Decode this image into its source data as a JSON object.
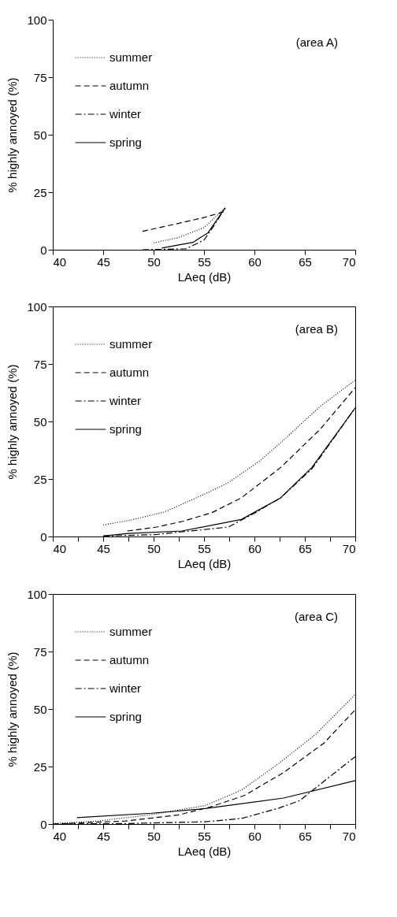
{
  "chart_data": [
    {
      "type": "line",
      "xlabel": "LAeq (dB)",
      "ylabel": "% highly annoyed (%)",
      "annotations": [
        "(area A)"
      ],
      "xlim": [
        40,
        70
      ],
      "ylim": [
        0,
        100
      ],
      "xticks": [
        40,
        45,
        50,
        55,
        60,
        65,
        70
      ],
      "yticks": [
        0,
        25,
        50,
        75,
        100
      ],
      "legend": "top left",
      "series": [
        {
          "name": "summer",
          "color": "#000000",
          "line_style": "dotted",
          "x": [
            50.0,
            52.4,
            55.0,
            57.1
          ],
          "values": [
            3.0,
            5.2,
            9.6,
            18.2
          ]
        },
        {
          "name": "autumn",
          "color": "#000000",
          "line_style": "dashed",
          "x": [
            48.9,
            52.0,
            55.0,
            56.9
          ],
          "values": [
            8.0,
            11.0,
            14.0,
            16.4
          ]
        },
        {
          "name": "winter",
          "color": "#000000",
          "line_style": "dashdot",
          "x": [
            48.9,
            53.2,
            55.0,
            56.1,
            57.1
          ],
          "values": [
            0.0,
            0.4,
            4.2,
            11.2,
            18.2
          ]
        },
        {
          "name": "spring",
          "color": "#000000",
          "line_style": "solid",
          "x": [
            50.8,
            52.4,
            53.9,
            55.4,
            57.1
          ],
          "values": [
            0.7,
            2.0,
            3.2,
            7.4,
            18.2
          ]
        }
      ]
    },
    {
      "type": "line",
      "xlabel": "LAeq (dB)",
      "ylabel": "% highly annoyed (%)",
      "annotations": [
        "(area B)"
      ],
      "xlim": [
        40,
        70
      ],
      "ylim": [
        0,
        100
      ],
      "xticks": [
        40,
        {
          "value": 42.5,
          "label": null
        },
        45,
        {
          "value": 47.5,
          "label": null
        },
        50,
        {
          "value": 52.5,
          "label": null
        },
        55,
        {
          "value": 57.5,
          "label": null
        },
        60,
        {
          "value": 62.5,
          "label": null
        },
        65,
        {
          "value": 67.5,
          "label": null
        },
        70
      ],
      "yticks": [
        0,
        25,
        50,
        75,
        100
      ],
      "legend": "top left",
      "series": [
        {
          "name": "summer",
          "color": "#000000",
          "line_style": "dotted",
          "x": [
            45.0,
            47.7,
            51.1,
            54.8,
            57.4,
            60.5,
            63.1,
            66.5,
            70.0
          ],
          "values": [
            5.0,
            7.1,
            10.7,
            17.9,
            23.4,
            32.7,
            42.7,
            56.5,
            68.0
          ]
        },
        {
          "name": "autumn",
          "color": "#000000",
          "line_style": "dashed",
          "x": [
            47.4,
            50.3,
            52.9,
            55.8,
            58.7,
            62.6,
            66.5,
            70.0
          ],
          "values": [
            2.4,
            4.1,
            6.6,
            10.4,
            16.8,
            30.0,
            46.5,
            64.7
          ]
        },
        {
          "name": "winter",
          "color": "#000000",
          "line_style": "dashdot",
          "x": [
            45.0,
            50.1,
            57.4,
            60.0,
            62.6,
            65.7,
            70.0
          ],
          "values": [
            0.2,
            0.8,
            4.1,
            10.1,
            16.8,
            29.4,
            55.9
          ]
        },
        {
          "name": "spring",
          "color": "#000000",
          "line_style": "solid",
          "x": [
            45.0,
            47.5,
            52.8,
            58.7,
            62.6,
            65.7,
            70.0
          ],
          "values": [
            0.2,
            1.3,
            2.4,
            7.4,
            16.8,
            30.0,
            55.9
          ]
        }
      ]
    },
    {
      "type": "line",
      "xlabel": "LAeq (dB)",
      "ylabel": "% highly annoyed (%)",
      "annotations": [
        "(area C)"
      ],
      "xlim": [
        40,
        70
      ],
      "ylim": [
        0,
        100
      ],
      "xticks": [
        40,
        {
          "value": 42.5,
          "label": null
        },
        45,
        {
          "value": 47.5,
          "label": null
        },
        50,
        {
          "value": 52.5,
          "label": null
        },
        55,
        {
          "value": 57.5,
          "label": null
        },
        60,
        {
          "value": 62.5,
          "label": null
        },
        65,
        {
          "value": 67.5,
          "label": null
        },
        70
      ],
      "yticks": [
        0,
        25,
        50,
        75,
        100
      ],
      "legend": "top left",
      "series": [
        {
          "name": "summer",
          "color": "#000000",
          "line_style": "dotted",
          "x": [
            40.0,
            44.5,
            49.8,
            55.1,
            58.7,
            62.4,
            66.1,
            70.0
          ],
          "values": [
            0.2,
            1.3,
            4.1,
            8.0,
            14.7,
            26.3,
            39.1,
            56.3
          ]
        },
        {
          "name": "autumn",
          "color": "#000000",
          "line_style": "dashed",
          "x": [
            40.0,
            47.2,
            52.4,
            55.6,
            59.0,
            62.9,
            66.9,
            70.0
          ],
          "values": [
            0.0,
            1.3,
            3.9,
            7.4,
            12.4,
            22.4,
            35.2,
            49.7
          ]
        },
        {
          "name": "winter",
          "color": "#000000",
          "line_style": "dashdot",
          "x": [
            40.0,
            47.2,
            55.1,
            58.7,
            62.4,
            64.5,
            66.9,
            70.0
          ],
          "values": [
            0.0,
            0.2,
            1.0,
            2.4,
            6.9,
            10.2,
            18.6,
            29.3
          ]
        },
        {
          "name": "spring",
          "color": "#000000",
          "line_style": "solid",
          "x": [
            42.4,
            49.8,
            55.1,
            62.9,
            70.0
          ],
          "values": [
            2.8,
            4.7,
            6.7,
            11.3,
            18.9
          ]
        }
      ]
    }
  ]
}
